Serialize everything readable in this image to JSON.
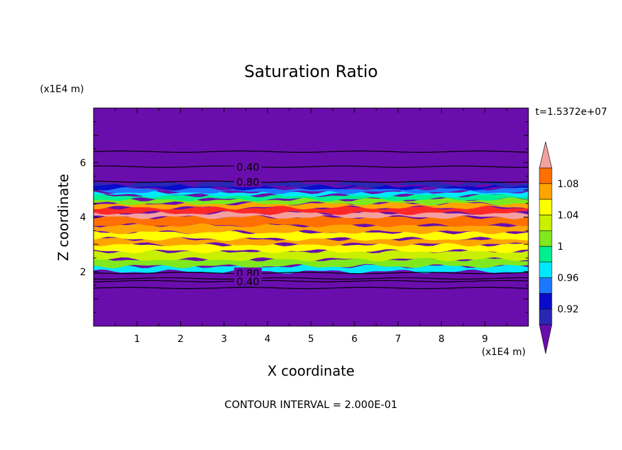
{
  "chart_data": {
    "type": "heatmap",
    "title": "Saturation Ratio",
    "xlabel": "X coordinate",
    "ylabel": "Z coordinate",
    "x_unit": "(x1E4 m)",
    "y_unit": "(x1E4 m)",
    "time_label": "t=1.5372e+07",
    "footer": "CONTOUR INTERVAL = 2.000E-01",
    "xlim": [
      0,
      10
    ],
    "ylim": [
      0,
      8
    ],
    "x_ticks": [
      "1",
      "2",
      "3",
      "4",
      "5",
      "6",
      "7",
      "8",
      "9"
    ],
    "y_ticks": [
      "2",
      "4",
      "6"
    ],
    "colorbar": {
      "levels": [
        0.9,
        0.92,
        0.94,
        0.96,
        0.98,
        1.0,
        1.02,
        1.04,
        1.06,
        1.08,
        1.1
      ],
      "tick_labels": [
        "0.92",
        "0.96",
        "1",
        "1.04",
        "1.08"
      ],
      "tick_values": [
        0.92,
        0.96,
        1.0,
        1.04,
        1.08
      ],
      "colors": [
        "#6a0dad",
        "#2828b4",
        "#0a0acc",
        "#1e78ff",
        "#00e8ff",
        "#00f090",
        "#80e81e",
        "#c8f000",
        "#ffff00",
        "#ffa500",
        "#ff7000",
        "#ff2828",
        "#f4a0a0"
      ],
      "under_color": "#6a0dad",
      "over_color": "#f4a0a0"
    },
    "background_color": "#6a0dad",
    "bands": [
      {
        "z_bottom": 2.0,
        "z_top": 2.2,
        "color": "#00e8ff"
      },
      {
        "z_bottom": 2.2,
        "z_top": 2.45,
        "color": "#80e81e"
      },
      {
        "z_bottom": 2.45,
        "z_top": 2.75,
        "color": "#c8f000"
      },
      {
        "z_bottom": 2.75,
        "z_top": 3.0,
        "color": "#ffff00"
      },
      {
        "z_bottom": 3.0,
        "z_top": 3.2,
        "color": "#ffa500"
      },
      {
        "z_bottom": 3.2,
        "z_top": 3.45,
        "color": "#ffff00"
      },
      {
        "z_bottom": 3.45,
        "z_top": 3.7,
        "color": "#ffa500"
      },
      {
        "z_bottom": 3.7,
        "z_top": 4.0,
        "color": "#ff7000"
      },
      {
        "z_bottom": 4.0,
        "z_top": 4.15,
        "color": "#f4a0a0"
      },
      {
        "z_bottom": 4.15,
        "z_top": 4.35,
        "color": "#ff2828"
      },
      {
        "z_bottom": 4.35,
        "z_top": 4.5,
        "color": "#ffa500"
      },
      {
        "z_bottom": 4.5,
        "z_top": 4.65,
        "color": "#80e81e"
      },
      {
        "z_bottom": 4.65,
        "z_top": 4.8,
        "color": "#00f090"
      },
      {
        "z_bottom": 4.8,
        "z_top": 4.92,
        "color": "#00e8ff"
      },
      {
        "z_bottom": 4.92,
        "z_top": 5.05,
        "color": "#1e78ff"
      },
      {
        "z_bottom": 5.05,
        "z_top": 5.15,
        "color": "#0a0acc"
      },
      {
        "z_bottom": 5.15,
        "z_top": 5.25,
        "color": "#2828b4"
      }
    ],
    "contours": [
      {
        "z": 6.4,
        "label": ""
      },
      {
        "z": 5.85,
        "label": "0.40"
      },
      {
        "z": 5.3,
        "label": "0.80"
      },
      {
        "z": 1.95,
        "label": "0.80"
      },
      {
        "z": 1.75,
        "label": ""
      },
      {
        "z": 1.65,
        "label": "0.40"
      },
      {
        "z": 1.4,
        "label": ""
      }
    ]
  }
}
